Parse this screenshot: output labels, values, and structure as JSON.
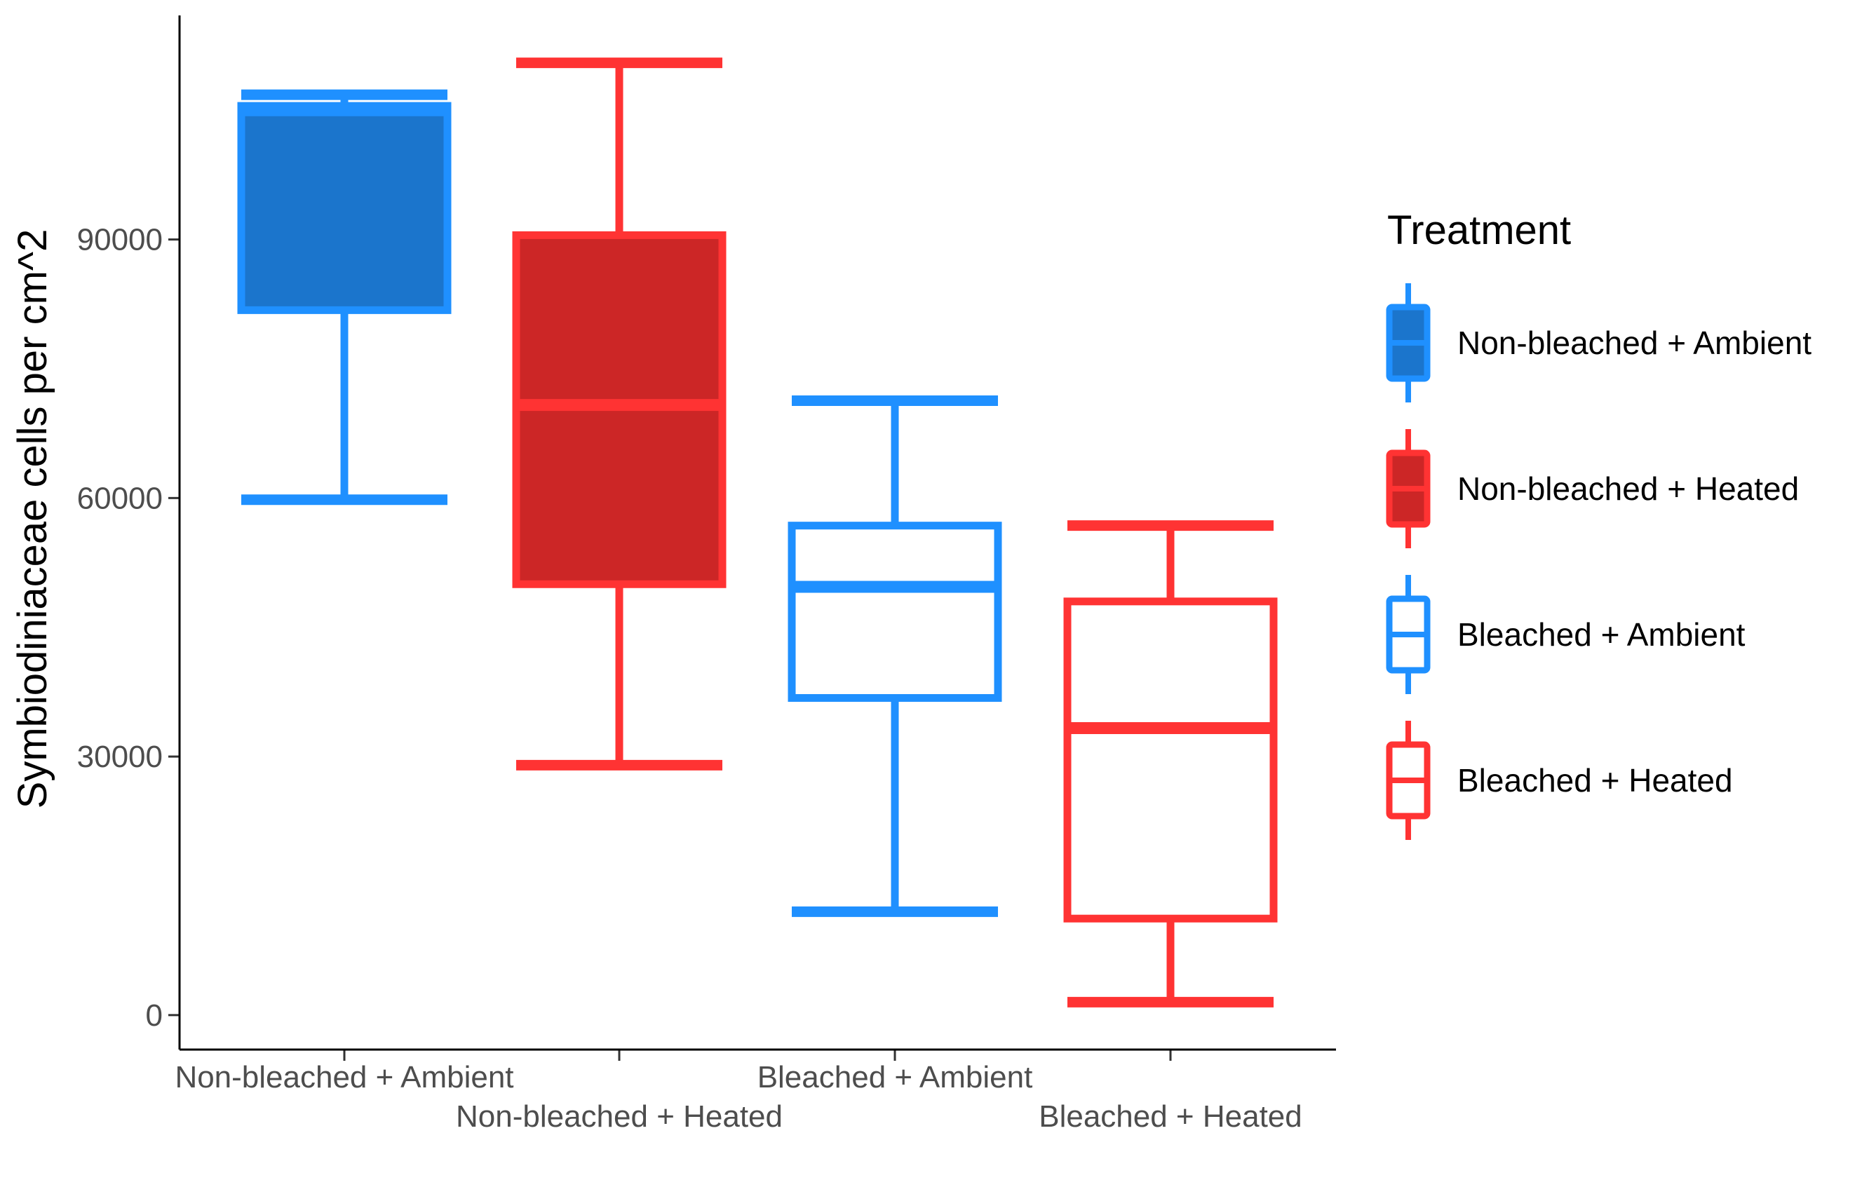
{
  "chart_data": {
    "type": "box",
    "title": "",
    "xlabel": "",
    "ylabel": "Symbiodiniaceae cells per cm^2",
    "ylim": [
      -4000,
      116000
    ],
    "yticks": [
      0,
      30000,
      60000,
      90000
    ],
    "ytick_labels": [
      "0",
      "30000",
      "60000",
      "90000"
    ],
    "categories": [
      "Non-bleached + Ambient",
      "Non-bleached + Heated",
      "Bleached + Ambient",
      "Bleached + Heated"
    ],
    "series": [
      {
        "name": "Non-bleached + Ambient",
        "min": 59800,
        "q1": 81800,
        "median": 105000,
        "q3": 105500,
        "max": 106800,
        "fill": "#1b75cc",
        "stroke": "#1f90ff"
      },
      {
        "name": "Non-bleached + Heated",
        "min": 29000,
        "q1": 50000,
        "median": 70800,
        "q3": 90500,
        "max": 110500,
        "fill": "#cc2626",
        "stroke": "#ff3333"
      },
      {
        "name": "Bleached + Ambient",
        "min": 12000,
        "q1": 36800,
        "median": 49700,
        "q3": 56800,
        "max": 71300,
        "fill": "#ffffff",
        "stroke": "#1f90ff"
      },
      {
        "name": "Bleached + Heated",
        "min": 1500,
        "q1": 11200,
        "median": 33300,
        "q3": 48000,
        "max": 56800,
        "fill": "#ffffff",
        "stroke": "#ff3333"
      }
    ],
    "legend": {
      "title": "Treatment",
      "position": "right",
      "entries": [
        "Non-bleached + Ambient",
        "Non-bleached + Heated",
        "Bleached + Ambient",
        "Bleached + Heated"
      ]
    },
    "grid": false
  }
}
